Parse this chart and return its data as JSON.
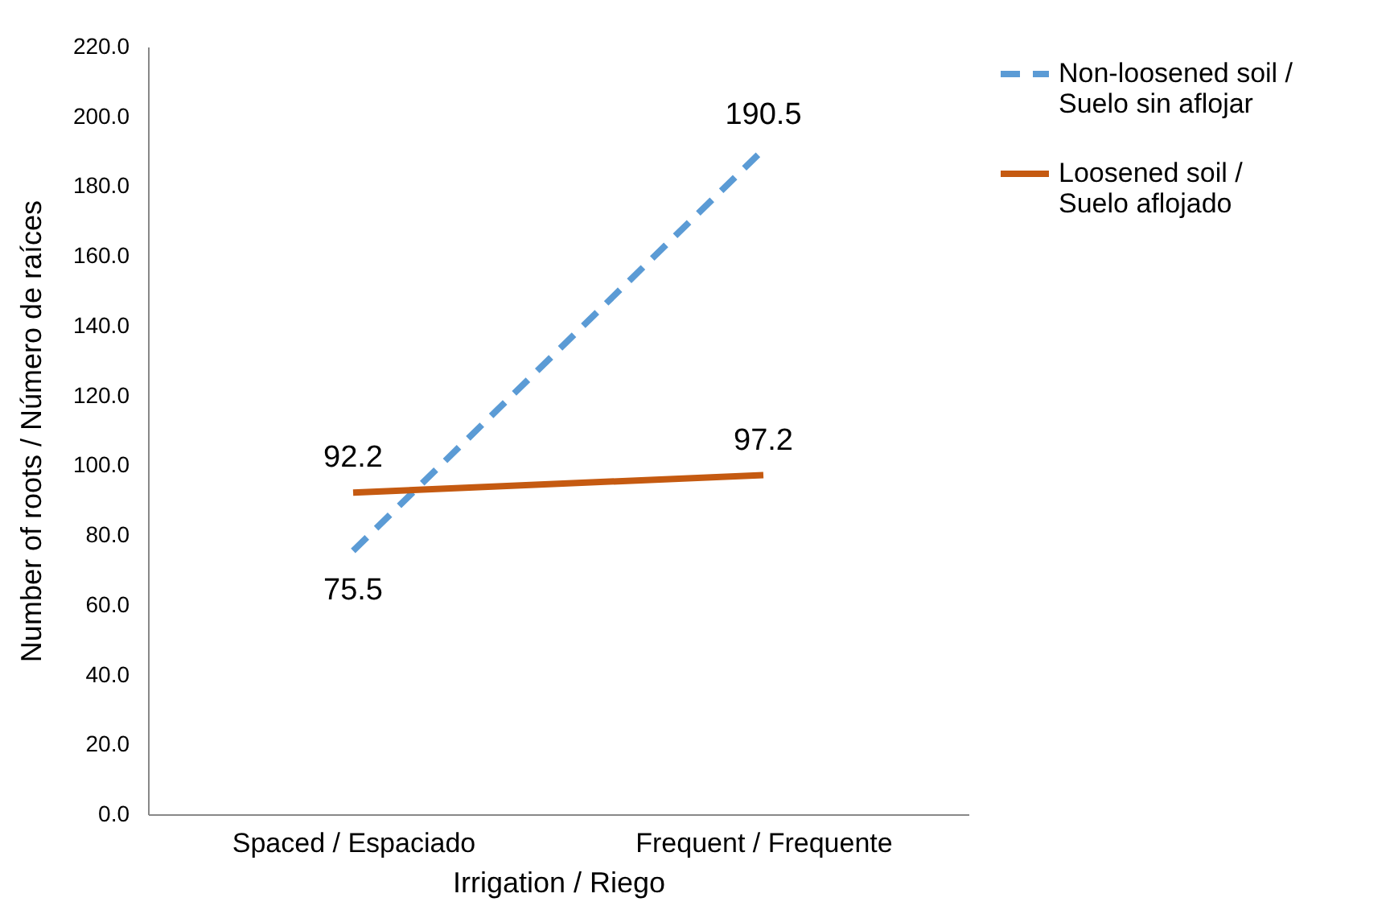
{
  "chart_data": {
    "type": "line",
    "xlabel": "Irrigation / Riego",
    "ylabel": "Number of roots / Número de raíces",
    "categories": [
      "Spaced / Espaciado",
      "Frequent / Frequente"
    ],
    "series": [
      {
        "name": "Non-loosened soil / Suelo sin aflojar",
        "color": "#5b9bd5",
        "line_style": "dashed",
        "values": [
          75.5,
          190.5
        ]
      },
      {
        "name": "Loosened soil / Suelo aflojado",
        "color": "#c55a11",
        "line_style": "solid",
        "values": [
          92.2,
          97.2
        ]
      }
    ],
    "ylim": [
      0,
      220
    ],
    "yticks": [
      {
        "value": 0,
        "label": "0.0"
      },
      {
        "value": 20,
        "label": "20.0"
      },
      {
        "value": 40,
        "label": "40.0"
      },
      {
        "value": 60,
        "label": "60.0"
      },
      {
        "value": 80,
        "label": "80.0"
      },
      {
        "value": 100,
        "label": "100.0"
      },
      {
        "value": 120,
        "label": "120.0"
      },
      {
        "value": 140,
        "label": "140.0"
      },
      {
        "value": 160,
        "label": "160.0"
      },
      {
        "value": 180,
        "label": "180.0"
      },
      {
        "value": 200,
        "label": "200.0"
      },
      {
        "value": 220,
        "label": "220.0"
      }
    ],
    "grid": false,
    "legend": "right",
    "data_labels": true,
    "marker": "none"
  }
}
